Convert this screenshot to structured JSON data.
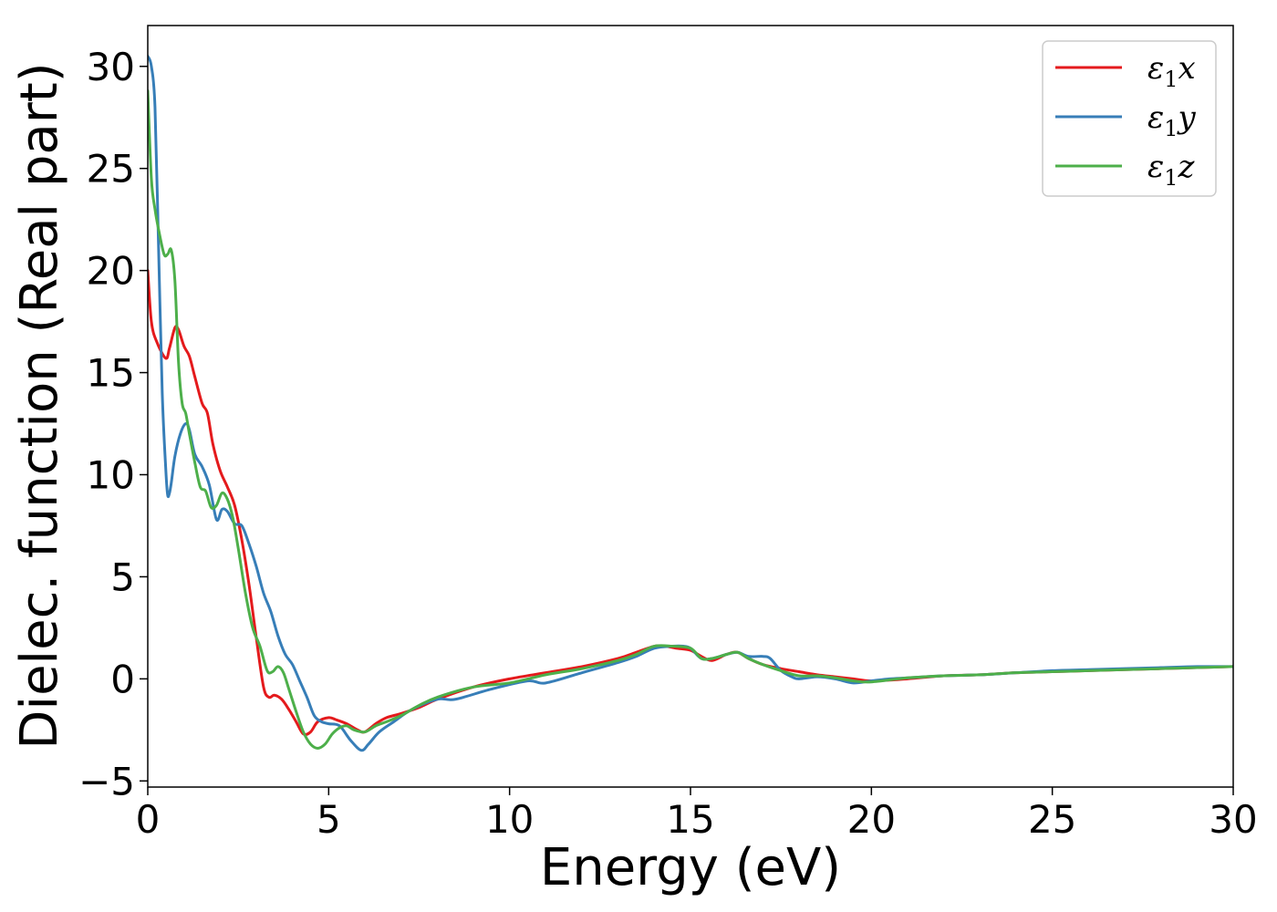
{
  "chart_data": {
    "type": "line",
    "title": "",
    "xlabel": "Energy (eV)",
    "ylabel": "Dielec. function (Real part)",
    "xlim": [
      0,
      30
    ],
    "ylim": [
      -5.3,
      32
    ],
    "xticks": [
      0,
      5,
      10,
      15,
      20,
      25,
      30
    ],
    "yticks": [
      -5,
      0,
      5,
      10,
      15,
      20,
      25,
      30
    ],
    "xtick_labels": [
      "0",
      "5",
      "10",
      "15",
      "20",
      "25",
      "30"
    ],
    "ytick_labels": [
      "−5",
      "0",
      "5",
      "10",
      "15",
      "20",
      "25",
      "30"
    ],
    "grid": false,
    "legend_position": "top-right",
    "series": [
      {
        "name": "ε₁x",
        "legend_base": "ε",
        "legend_sub": "1",
        "legend_var": "x",
        "color": "#e41a1c",
        "x": [
          0,
          0.1,
          0.25,
          0.5,
          0.6,
          0.75,
          0.85,
          1.0,
          1.15,
          1.3,
          1.5,
          1.65,
          1.8,
          2.0,
          2.2,
          2.4,
          2.6,
          2.8,
          3.0,
          3.2,
          3.35,
          3.5,
          3.7,
          3.9,
          4.1,
          4.3,
          4.5,
          4.7,
          5.0,
          5.2,
          5.5,
          5.8,
          6.0,
          6.3,
          6.6,
          7.0,
          7.5,
          8.0,
          9.0,
          10.0,
          11.0,
          12.0,
          13.0,
          13.5,
          14.0,
          14.3,
          14.6,
          15.0,
          15.3,
          15.6,
          16.0,
          16.3,
          16.6,
          17.0,
          17.5,
          18.0,
          18.5,
          19.0,
          19.5,
          20.0,
          21.0,
          22.0,
          23.0,
          24.0,
          25.0,
          26.0,
          27.0,
          28.0,
          29.0,
          30.0
        ],
        "values": [
          20.0,
          17.5,
          16.5,
          15.7,
          16.2,
          17.2,
          17.1,
          16.3,
          15.8,
          14.8,
          13.5,
          13.0,
          11.5,
          10.2,
          9.4,
          8.5,
          6.8,
          4.6,
          2.0,
          -0.4,
          -0.9,
          -0.8,
          -1.0,
          -1.5,
          -2.1,
          -2.7,
          -2.6,
          -2.1,
          -1.9,
          -2.0,
          -2.2,
          -2.5,
          -2.6,
          -2.2,
          -1.9,
          -1.7,
          -1.4,
          -1.0,
          -0.4,
          0.0,
          0.3,
          0.6,
          1.0,
          1.3,
          1.6,
          1.6,
          1.5,
          1.4,
          1.1,
          0.9,
          1.2,
          1.3,
          1.0,
          0.7,
          0.5,
          0.35,
          0.2,
          0.1,
          0.0,
          -0.1,
          0.0,
          0.15,
          0.2,
          0.3,
          0.35,
          0.4,
          0.45,
          0.5,
          0.55,
          0.6
        ]
      },
      {
        "name": "ε₁y",
        "legend_base": "ε",
        "legend_sub": "1",
        "legend_var": "y",
        "color": "#377eb8",
        "x": [
          0,
          0.1,
          0.2,
          0.3,
          0.4,
          0.5,
          0.55,
          0.6,
          0.65,
          0.75,
          0.9,
          1.05,
          1.15,
          1.3,
          1.5,
          1.7,
          1.9,
          2.05,
          2.2,
          2.4,
          2.6,
          2.8,
          3.0,
          3.2,
          3.4,
          3.6,
          3.8,
          4.0,
          4.2,
          4.4,
          4.6,
          4.8,
          5.0,
          5.3,
          5.6,
          5.9,
          6.1,
          6.4,
          6.8,
          7.3,
          8.0,
          8.5,
          9.5,
          10.5,
          11.0,
          12.0,
          13.0,
          13.5,
          14.0,
          14.5,
          14.8,
          15.0,
          15.3,
          15.6,
          16.0,
          16.3,
          16.6,
          17.0,
          17.2,
          17.5,
          17.8,
          18.0,
          18.5,
          19.0,
          19.5,
          20.0,
          20.5,
          21.0,
          22.0,
          23.0,
          24.0,
          25.0,
          26.0,
          27.0,
          28.0,
          29.0,
          30.0
        ],
        "values": [
          30.5,
          30.0,
          28.0,
          21.0,
          14.0,
          10.2,
          9.0,
          9.1,
          9.6,
          10.9,
          12.0,
          12.5,
          12.2,
          11.0,
          10.4,
          9.5,
          7.8,
          8.3,
          8.2,
          7.6,
          7.5,
          6.6,
          5.5,
          4.2,
          3.3,
          2.1,
          1.2,
          0.7,
          -0.1,
          -0.9,
          -1.8,
          -2.1,
          -2.2,
          -2.3,
          -3.0,
          -3.5,
          -3.2,
          -2.6,
          -2.1,
          -1.5,
          -1.0,
          -1.0,
          -0.5,
          -0.1,
          -0.2,
          0.3,
          0.8,
          1.1,
          1.5,
          1.6,
          1.6,
          1.5,
          1.0,
          1.0,
          1.2,
          1.3,
          1.1,
          1.1,
          1.0,
          0.4,
          0.1,
          0.0,
          0.1,
          0.0,
          -0.2,
          -0.1,
          0.0,
          0.05,
          0.15,
          0.2,
          0.3,
          0.4,
          0.45,
          0.5,
          0.55,
          0.6,
          0.6
        ]
      },
      {
        "name": "ε₁z",
        "legend_base": "ε",
        "legend_sub": "1",
        "legend_var": "z",
        "color": "#4daf4a",
        "x": [
          0,
          0.1,
          0.2,
          0.3,
          0.45,
          0.55,
          0.65,
          0.75,
          0.85,
          0.95,
          1.05,
          1.15,
          1.3,
          1.45,
          1.6,
          1.75,
          1.9,
          2.05,
          2.2,
          2.35,
          2.5,
          2.7,
          2.9,
          3.1,
          3.3,
          3.45,
          3.6,
          3.75,
          3.9,
          4.1,
          4.3,
          4.5,
          4.7,
          4.9,
          5.1,
          5.3,
          5.5,
          5.7,
          6.0,
          6.3,
          6.6,
          7.0,
          7.5,
          8.0,
          9.0,
          10.0,
          11.0,
          12.0,
          13.0,
          13.5,
          14.0,
          14.5,
          15.0,
          15.3,
          15.6,
          16.0,
          16.3,
          16.6,
          17.0,
          17.5,
          18.0,
          18.5,
          19.0,
          19.5,
          20.0,
          21.0,
          22.0,
          23.0,
          24.0,
          25.0,
          26.0,
          27.0,
          28.0,
          29.0,
          30.0
        ],
        "values": [
          28.8,
          24.5,
          23.0,
          22.0,
          20.8,
          20.8,
          21.0,
          19.5,
          15.5,
          13.5,
          13.0,
          12.0,
          10.6,
          9.4,
          9.2,
          8.4,
          8.5,
          9.1,
          8.8,
          7.9,
          6.4,
          4.2,
          2.5,
          1.6,
          0.4,
          0.35,
          0.6,
          0.3,
          -0.5,
          -1.6,
          -2.6,
          -3.2,
          -3.4,
          -3.2,
          -2.7,
          -2.4,
          -2.3,
          -2.5,
          -2.6,
          -2.3,
          -2.1,
          -1.8,
          -1.3,
          -0.9,
          -0.4,
          -0.2,
          0.2,
          0.5,
          0.9,
          1.2,
          1.6,
          1.6,
          1.5,
          1.0,
          1.0,
          1.2,
          1.3,
          1.0,
          0.7,
          0.4,
          0.15,
          0.15,
          0.05,
          -0.1,
          -0.15,
          0.05,
          0.15,
          0.2,
          0.3,
          0.35,
          0.4,
          0.45,
          0.5,
          0.55,
          0.6
        ]
      }
    ]
  }
}
